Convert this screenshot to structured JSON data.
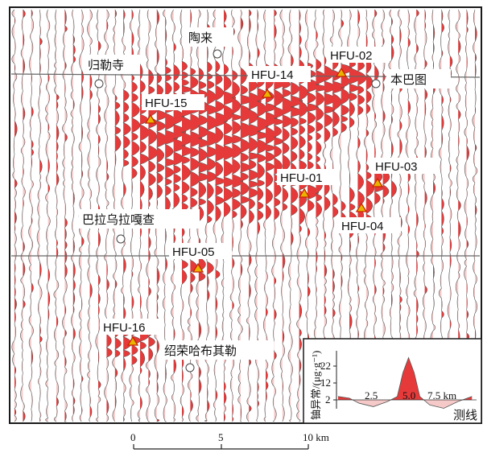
{
  "map": {
    "colors": {
      "anomaly": "#e63a3a",
      "negative": "#f6c9c9",
      "line": "#555555",
      "frame": "#1a1a1a",
      "marker_fill": "#e8b400",
      "marker_stroke": "#cc2200"
    },
    "place_labels": [
      {
        "name": "陶来"
      },
      {
        "name": "归勒寺"
      },
      {
        "name": "本巴图"
      },
      {
        "name": "巴拉乌拉嘎查"
      },
      {
        "name": "绍荣哈布其勒"
      }
    ],
    "samples": [
      {
        "id": "HFU-02"
      },
      {
        "id": "HFU-14"
      },
      {
        "id": "HFU-15"
      },
      {
        "id": "HFU-01"
      },
      {
        "id": "HFU-03"
      },
      {
        "id": "HFU-04"
      },
      {
        "id": "HFU-05"
      },
      {
        "id": "HFU-16"
      }
    ],
    "scale_bar": {
      "ticks": [
        "0",
        "5",
        "10 km"
      ]
    },
    "inset": {
      "ylabel": "铀异常/(μg·g⁻¹)",
      "yticks": [
        "22",
        "12",
        "2"
      ],
      "xticks": [
        "2.5",
        "5.0",
        "7.5 km"
      ],
      "xlabel": "测线",
      "profile": {
        "x_km": [
          0,
          0.8,
          1.5,
          2.5,
          3.5,
          4.2,
          4.6,
          5.0,
          5.4,
          5.8,
          6.5,
          7.5,
          8.5,
          9.5
        ],
        "u_ugg": [
          4,
          3,
          0,
          -2,
          1,
          4,
          18,
          27,
          18,
          4,
          -1,
          -3,
          1,
          4
        ]
      }
    }
  }
}
